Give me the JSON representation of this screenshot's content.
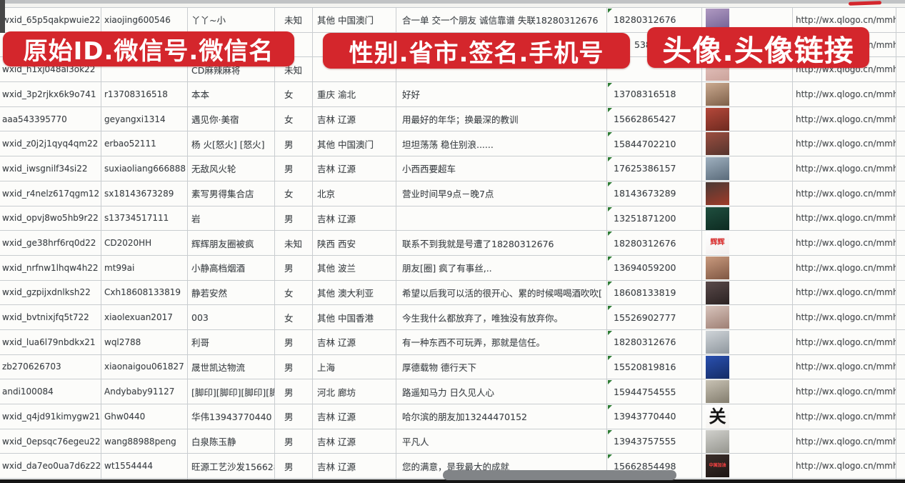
{
  "annotations": {
    "banner_ids": "原始ID.微信号.微信名",
    "banner_profile": "性别.省市.签名.手机号",
    "banner_avatar": "头像.头像链接",
    "banner_color": "#d4262c"
  },
  "table": {
    "rows": [
      {
        "wxid": "wxid_65p5qakpwuie22",
        "wechat_id": "xiaojing600546",
        "nickname": "丫丫~小",
        "gender": "未知",
        "region": "其他 中国澳门",
        "signature": "合一单 交一个朋友 诚信靠谱 失联18280312676",
        "phone": "18280312676",
        "tri": true,
        "avatar": {
          "desc": "woman-selfie-purple",
          "c1": "#b09ac2",
          "c2": "#6f5e92",
          "label": ""
        },
        "avatar_link": "http://wx.qlogo.cn/mmhead"
      },
      {
        "wxid": "",
        "wechat_id": "",
        "nickname": "",
        "gender": "",
        "region": "",
        "signature": "",
        "phone": "5386",
        "obscured": true,
        "avatar": {
          "desc": "photo-hidden-behind-banner",
          "c1": "#c9bcc6",
          "c2": "#9d8ea0",
          "label": ""
        },
        "avatar_link": "http://wx.qlogo.cn/mmhead"
      },
      {
        "wxid": "wxid_h1xj048al3ok22",
        "wechat_id": "",
        "nickname": "CD麻辣麻将",
        "gender": "未知",
        "region": "",
        "signature": "",
        "phone": "",
        "tri": true,
        "avatar": {
          "desc": "person-photo-pink",
          "c1": "#e8c7c2",
          "c2": "#cba39b",
          "label": ""
        },
        "avatar_link": "http://wx.qlogo.cn/mmhead"
      },
      {
        "wxid": "wxid_3p2rjkx6k9o741",
        "wechat_id": "r13708316518",
        "nickname": "本本",
        "gender": "女",
        "region": "重庆 渝北",
        "signature": "好好",
        "phone": "13708316518",
        "tri": true,
        "avatar": {
          "desc": "woman-long-hair",
          "c1": "#caa98f",
          "c2": "#7e6049",
          "label": ""
        },
        "avatar_link": "http://wx.qlogo.cn/mmhead"
      },
      {
        "wxid": "aaa543395770",
        "wechat_id": "geyangxi1314",
        "nickname": "遇见你·美宿",
        "gender": "女",
        "region": "吉林 辽源",
        "signature": "用最好的年华；换最深的教训",
        "phone": "15662865427",
        "tri": true,
        "avatar": {
          "desc": "people-red-tones",
          "c1": "#b5483a",
          "c2": "#6e2a20",
          "label": ""
        },
        "avatar_link": "http://wx.qlogo.cn/mmhead"
      },
      {
        "wxid": "wxid_z0j2j1qyq4qm22",
        "wechat_id": "erbao52111",
        "nickname": "杨 火[怒火] [怒火]",
        "gender": "男",
        "region": "其他 中国澳门",
        "signature": "坦坦荡荡 稳住别浪......",
        "phone": "15844702210",
        "tri": true,
        "avatar": {
          "desc": "group-of-people",
          "c1": "#9c4f41",
          "c2": "#55332c",
          "label": ""
        },
        "avatar_link": "http://wx.qlogo.cn/mmhead"
      },
      {
        "wxid": "wxid_iwsgnilf34si22",
        "wechat_id": "suxiaoliang666888",
        "nickname": "无敌风火轮",
        "gender": "男",
        "region": "吉林 辽源",
        "signature": "小西西要超车",
        "phone": "17625386157",
        "tri": true,
        "avatar": {
          "desc": "man-in-car-seatbelt",
          "c1": "#9fb0bf",
          "c2": "#5a6b7a",
          "label": ""
        },
        "avatar_link": "http://wx.qlogo.cn/mmhead"
      },
      {
        "wxid": "wxid_r4nelz617qgm12",
        "wechat_id": "sx18143673289",
        "nickname": "素写男得集合店",
        "gender": "女",
        "region": "北京",
        "signature": "营业时间早9点－晚7点",
        "phone": "18143673289",
        "tri": true,
        "avatar": {
          "desc": "dark-storefront-red-sign",
          "c1": "#4a3a36",
          "c2": "#a03a28",
          "label": ""
        },
        "avatar_link": "http://wx.qlogo.cn/mmhead"
      },
      {
        "wxid": "wxid_opvj8wo5hb9r22",
        "wechat_id": "s13734517111",
        "nickname": "岩",
        "gender": "男",
        "region": "吉林 辽源",
        "signature": "",
        "phone": "13251871200",
        "tri": true,
        "avatar": {
          "desc": "dark-green-graphic",
          "c1": "#1f4f3f",
          "c2": "#0d2b21",
          "label": ""
        },
        "avatar_link": "http://wx.qlogo.cn/mmhead"
      },
      {
        "wxid": "wxid_ge38hrf6rq0d22",
        "wechat_id": "CD2020HH",
        "nickname": "辉辉朋友圈被疯",
        "gender": "未知",
        "region": "陕西 西安",
        "signature": "联系不到我就是号遭了18280312676",
        "phone": "18280312676",
        "tri": true,
        "avatar": {
          "desc": "white-with-red-text",
          "c1": "#ffffff",
          "c2": "#f3efee",
          "label": "辉辉",
          "label_color": "#e03131",
          "label_size": 10
        },
        "avatar_link": "http://wx.qlogo.cn/mmhead"
      },
      {
        "wxid": "wxid_nrfnw1lhqw4h22",
        "wechat_id": "mt99ai",
        "nickname": "小静高档烟酒",
        "gender": "男",
        "region": "其他 波兰",
        "signature": "朋友[圈] 疯了有事丝,..",
        "phone": "13694059200",
        "tri": true,
        "avatar": {
          "desc": "woman-with-sunglasses",
          "c1": "#c99a7e",
          "c2": "#7f5743",
          "label": ""
        },
        "avatar_link": "http://wx.qlogo.cn/mmhead"
      },
      {
        "wxid": "wxid_gzpijxdnlksh22",
        "wechat_id": "Cxh18608133819",
        "nickname": "静若安然",
        "gender": "女",
        "region": "其他 澳大利亚",
        "signature": "希望以后我可以活的很开心、累的时候喝喝酒吹吹[",
        "phone": "18608133819",
        "tri": true,
        "avatar": {
          "desc": "woman-dark-hair-selfie",
          "c1": "#5a4a4a",
          "c2": "#2b2222",
          "label": ""
        },
        "avatar_link": "http://wx.qlogo.cn/mmhead"
      },
      {
        "wxid": "wxid_bvtnixjfq5t722",
        "wechat_id": "xiaolexuan2017",
        "nickname": "003",
        "gender": "女",
        "region": "其他 中国香港",
        "signature": "今生我什么都放弃了，唯独没有放弃你。",
        "phone": "15526902777",
        "tri": true,
        "avatar": {
          "desc": "woman-closeup",
          "c1": "#d8c4bc",
          "c2": "#9e7f74",
          "label": ""
        },
        "avatar_link": "http://wx.qlogo.cn/mmhead"
      },
      {
        "wxid": "wxid_lua6l79nbdkx21",
        "wechat_id": "wql2788",
        "nickname": "利哥",
        "gender": "男",
        "region": "吉林 辽源",
        "signature": "有一种东西不可玩弄，那就是信任。",
        "phone": "18280312676",
        "tri": true,
        "avatar": {
          "desc": "person-snowy-gray",
          "c1": "#cfd4d8",
          "c2": "#8f979e",
          "label": ""
        },
        "avatar_link": "http://wx.qlogo.cn/mmhead"
      },
      {
        "wxid": "zb270626703",
        "wechat_id": "xiaonaigou061827",
        "nickname": "晟世凯达物流",
        "gender": "男",
        "region": "上海",
        "signature": "厚德载物 德行天下",
        "phone": "15520819816",
        "tri": true,
        "avatar": {
          "desc": "blue-qr-code-graphic",
          "c1": "#2a50b0",
          "c2": "#142c66",
          "label": ""
        },
        "avatar_link": "http://wx.qlogo.cn/mmhead"
      },
      {
        "wxid": "andi100084",
        "wechat_id": "Andybaby91127",
        "nickname": "[脚印][脚印][脚印][脚印]",
        "gender": "男",
        "region": "河北 廊坊",
        "signature": "路遥知马力 日久见人心",
        "phone": "15944754555",
        "tri": true,
        "avatar": {
          "desc": "outdoor-monument-photo",
          "c1": "#c8c2b4",
          "c2": "#837d6e",
          "label": ""
        },
        "avatar_link": "http://wx.qlogo.cn/mmhead"
      },
      {
        "wxid": "wxid_q4jd91kimygw21",
        "wechat_id": "Ghw0440",
        "nickname": "华伟13943770440",
        "gender": "男",
        "region": "吉林 辽源",
        "signature": "哈尔滨的朋友加13244470152",
        "phone": "13943770440",
        "tri": true,
        "avatar": {
          "desc": "white-with-black-calligraphy",
          "c1": "#ffffff",
          "c2": "#f4f2ee",
          "label": "关",
          "label_color": "#141414",
          "label_size": 24
        },
        "avatar_link": "http://wx.qlogo.cn/mmhead"
      },
      {
        "wxid": "wxid_0epsqc76egeu22",
        "wechat_id": "wang88988peng",
        "nickname": "白泉陈玉静",
        "gender": "男",
        "region": "吉林 辽源",
        "signature": "平凡人",
        "phone": "13943757555",
        "tri": true,
        "avatar": {
          "desc": "gray-outdoor-person",
          "c1": "#d0d0cc",
          "c2": "#96968f",
          "label": ""
        },
        "avatar_link": "http://wx.qlogo.cn/mmhead"
      },
      {
        "wxid": "wxid_da7eo0ua7d6z22",
        "wechat_id": "wt1554444",
        "nickname": "旺源工艺沙发15662854",
        "gender": "男",
        "region": "吉林 辽源",
        "signature": "您的满意，是我最大的成就",
        "phone": "15662854498",
        "tri": true,
        "avatar": {
          "desc": "dark-photo-red-banner-text",
          "c1": "#3a2e2a",
          "c2": "#1e1614",
          "label": "中国加油",
          "label_color": "#ff4242",
          "label_size": 6
        },
        "avatar_link": "http://wx.qlogo.cn/mmhead"
      },
      {
        "wxid": "",
        "wechat_id": "",
        "nickname": "",
        "gender": "",
        "region": "",
        "signature": "",
        "phone": "",
        "avatar": {
          "desc": "partial-blue-avatar",
          "c1": "#cdd8e2",
          "c2": "#7f9ab5",
          "label": ""
        },
        "avatar_link": ""
      }
    ]
  }
}
